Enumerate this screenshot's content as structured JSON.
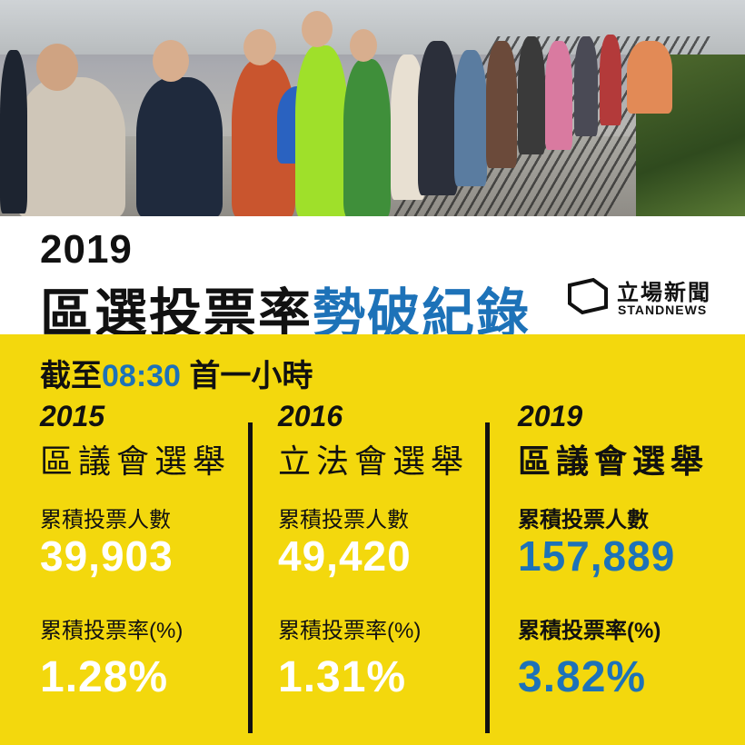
{
  "header": {
    "year": "2019",
    "headline_dark": "區選投票率",
    "headline_blue": "勢破紀錄"
  },
  "logo": {
    "name_cn": "立場新聞",
    "name_en": "STANDNEWS"
  },
  "as_of": {
    "prefix": "截至",
    "time": "08:30",
    "suffix": "首一小時"
  },
  "columns": [
    {
      "year": "2015",
      "election": "區議會選舉",
      "count_label": "累積投票人數",
      "count": "39,903",
      "rate_label": "累積投票率(%)",
      "rate": "1.28%"
    },
    {
      "year": "2016",
      "election": "立法會選舉",
      "count_label": "累積投票人數",
      "count": "49,420",
      "rate_label": "累積投票率(%)",
      "rate": "1.31%"
    },
    {
      "year": "2019",
      "election": "區議會選舉",
      "count_label": "累積投票人數",
      "count": "157,889",
      "rate_label": "累積投票率(%)",
      "rate": "3.82%"
    }
  ],
  "colors": {
    "accent_blue": "#1d72b8",
    "panel_yellow": "#f3d80d",
    "text_dark": "#111111"
  }
}
